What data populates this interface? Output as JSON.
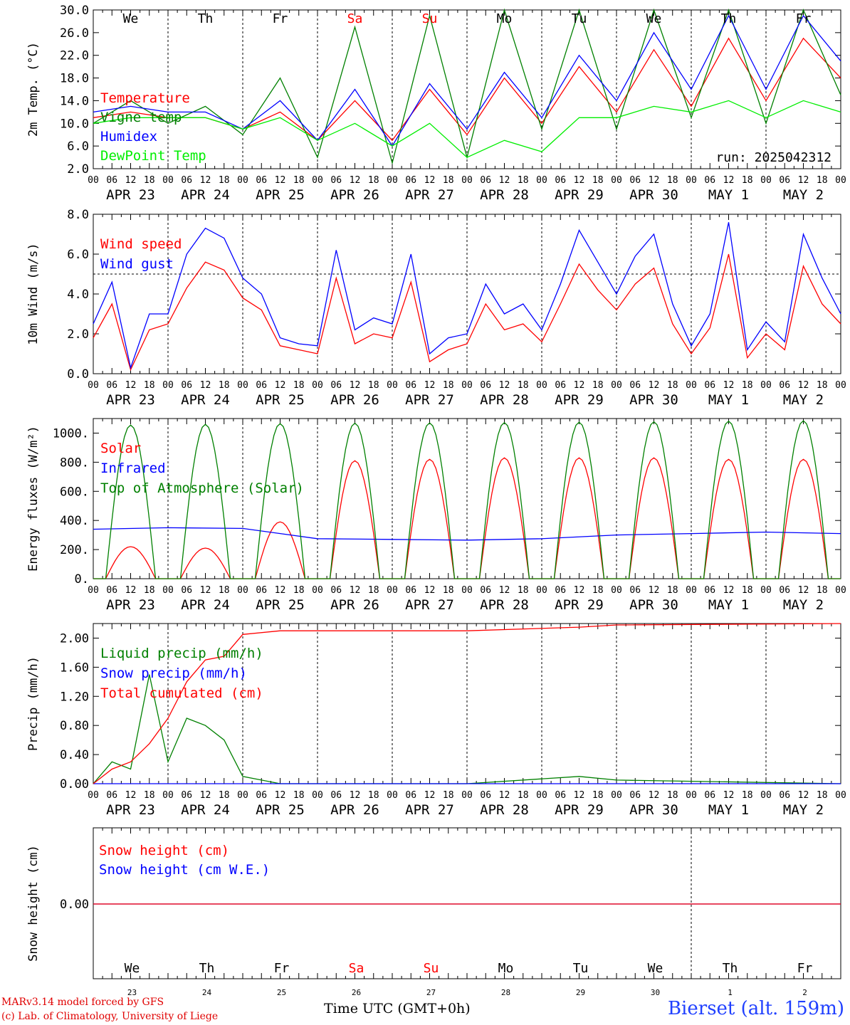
{
  "chart_data": [
    {
      "type": "line",
      "ylabel": "2m Temp. (°C)",
      "ylim": [
        2,
        30
      ],
      "yticks": [
        "2.0",
        "6.0",
        "10.0",
        "14.0",
        "18.0",
        "22.0",
        "26.0",
        "30.0"
      ],
      "run_label": "run: 2025042312",
      "x_hours": [
        0,
        12,
        24,
        36,
        48,
        60,
        72,
        84,
        96,
        108,
        120,
        132,
        144,
        156,
        168,
        180,
        192,
        204,
        216,
        228,
        240
      ],
      "series": [
        {
          "name": "Temperature",
          "color": "#ff0000",
          "values": [
            11,
            12,
            11,
            11,
            9,
            12,
            7,
            14,
            7,
            16,
            8,
            18,
            10,
            20,
            12,
            23,
            13,
            25,
            14,
            25,
            18
          ]
        },
        {
          "name": "Vigne temp",
          "color": "#008000",
          "values": [
            10,
            14,
            10,
            13,
            8,
            18,
            4,
            27,
            3,
            29,
            4,
            30,
            9,
            30,
            9,
            30,
            11,
            30,
            10,
            30,
            15
          ]
        },
        {
          "name": "Humidex",
          "color": "#0000ff",
          "values": [
            12,
            13,
            12,
            12,
            9,
            14,
            7,
            16,
            6,
            17,
            9,
            19,
            11,
            22,
            14,
            26,
            16,
            29,
            16,
            29,
            21
          ]
        },
        {
          "name": "DewPoint Temp",
          "color": "#00ee00",
          "values": [
            10,
            11,
            11,
            11,
            9,
            11,
            7,
            10,
            6,
            10,
            4,
            7,
            5,
            11,
            11,
            13,
            12,
            14,
            11,
            14,
            12
          ]
        }
      ]
    },
    {
      "type": "line",
      "ylabel": "10m Wind (m/s)",
      "ylim": [
        0,
        8
      ],
      "yticks": [
        "0.0",
        "2.0",
        "4.0",
        "6.0",
        "8.0"
      ],
      "reference_line": 5,
      "x_hours": [
        0,
        6,
        12,
        18,
        24,
        30,
        36,
        42,
        48,
        54,
        60,
        66,
        72,
        78,
        84,
        90,
        96,
        102,
        108,
        114,
        120,
        126,
        132,
        138,
        144,
        150,
        156,
        162,
        168,
        174,
        180,
        186,
        192,
        198,
        204,
        210,
        216,
        222,
        228,
        234,
        240
      ],
      "series": [
        {
          "name": "Wind speed",
          "color": "#ff0000",
          "values": [
            1.8,
            3.5,
            0.2,
            2.2,
            2.5,
            4.3,
            5.6,
            5.2,
            3.8,
            3.2,
            1.4,
            1.2,
            1.0,
            4.8,
            1.5,
            2.0,
            1.8,
            4.6,
            0.6,
            1.2,
            1.5,
            3.5,
            2.2,
            2.5,
            1.6,
            3.5,
            5.5,
            4.2,
            3.2,
            4.5,
            5.3,
            2.5,
            1.0,
            2.3,
            6.0,
            0.8,
            2.0,
            1.2,
            5.4,
            3.5,
            2.5
          ]
        },
        {
          "name": "Wind gust",
          "color": "#0000ff",
          "values": [
            2.5,
            4.6,
            0.3,
            3.0,
            3.0,
            6.0,
            7.3,
            6.8,
            4.8,
            4.0,
            1.8,
            1.5,
            1.4,
            6.2,
            2.2,
            2.8,
            2.5,
            6.0,
            1.0,
            1.8,
            2.0,
            4.5,
            3.0,
            3.5,
            2.2,
            4.5,
            7.2,
            5.6,
            4.0,
            5.9,
            7.0,
            3.5,
            1.4,
            3.0,
            7.6,
            1.2,
            2.6,
            1.6,
            7.0,
            4.8,
            3.0
          ]
        }
      ]
    },
    {
      "type": "line",
      "ylabel": "Energy fluxes (W/m²)",
      "ylim": [
        0,
        1100
      ],
      "yticks": [
        "0.",
        "200.",
        "400.",
        "600.",
        "800.",
        "1000."
      ],
      "series": [
        {
          "name": "Solar",
          "color": "#ff0000",
          "peaks": [
            220,
            210,
            390,
            810,
            820,
            830,
            830,
            830,
            820,
            820
          ]
        },
        {
          "name": "Infrared",
          "color": "#0000ff",
          "x_hours": [
            0,
            24,
            48,
            72,
            96,
            120,
            144,
            168,
            192,
            216,
            240
          ],
          "values": [
            340,
            350,
            345,
            275,
            270,
            265,
            275,
            300,
            310,
            320,
            310
          ]
        },
        {
          "name": "Top of Atmosphere (Solar)",
          "color": "#008000",
          "peaks": [
            1055,
            1060,
            1065,
            1068,
            1070,
            1072,
            1075,
            1078,
            1082,
            1085
          ]
        }
      ]
    },
    {
      "type": "line",
      "ylabel": "Precip (mm/h)",
      "ylim": [
        0,
        2.2
      ],
      "yticks": [
        "0.00",
        "0.40",
        "0.80",
        "1.20",
        "1.60",
        "2.00"
      ],
      "x_hours": [
        0,
        6,
        12,
        18,
        24,
        30,
        36,
        42,
        48,
        60,
        72,
        120,
        156,
        168,
        240
      ],
      "series": [
        {
          "name": "Liquid precip (mm/h)",
          "color": "#008000",
          "values": [
            0.0,
            0.3,
            0.2,
            1.5,
            0.3,
            0.9,
            0.8,
            0.6,
            0.1,
            0.0,
            0.0,
            0.0,
            0.1,
            0.05,
            0.0
          ]
        },
        {
          "name": "Snow precip (mm/h)",
          "color": "#0000ff",
          "values": [
            0,
            0,
            0,
            0,
            0,
            0,
            0,
            0,
            0,
            0,
            0,
            0,
            0,
            0,
            0
          ]
        },
        {
          "name": "Total cumulated (cm)",
          "color": "#ff0000",
          "values": [
            0.0,
            0.2,
            0.3,
            0.55,
            0.9,
            1.4,
            1.7,
            1.75,
            2.05,
            2.1,
            2.1,
            2.1,
            2.15,
            2.18,
            2.2
          ]
        }
      ]
    },
    {
      "type": "line",
      "ylabel": "Snow height (cm)",
      "yticks": [
        "0.00"
      ],
      "series": [
        {
          "name": "Snow height (cm)",
          "color": "#ff0000",
          "values": [
            0,
            0
          ]
        },
        {
          "name": "Snow height (cm W.E.)",
          "color": "#0000ff",
          "values": [
            0,
            0
          ]
        }
      ]
    }
  ],
  "x_axis": {
    "hour_ticks": [
      "00",
      "06",
      "12",
      "18"
    ],
    "last_tick": "00",
    "dates": [
      "APR 23",
      "APR 24",
      "APR 25",
      "APR 26",
      "APR 27",
      "APR 28",
      "APR 29",
      "APR 30",
      "MAY  1",
      "MAY  2"
    ],
    "day_names": [
      "We",
      "Th",
      "Fr",
      "Sa",
      "Su",
      "Mo",
      "Tu",
      "We",
      "Th",
      "Fr"
    ],
    "day_colors": [
      "#000000",
      "#000000",
      "#000000",
      "#ff0000",
      "#ff0000",
      "#000000",
      "#000000",
      "#000000",
      "#000000",
      "#000000"
    ],
    "day_numbers": [
      "23",
      "24",
      "25",
      "26",
      "27",
      "28",
      "29",
      "30",
      "1",
      "2"
    ],
    "label": "Time UTC (GMT+0h)"
  },
  "credits": {
    "line1": "MARv3.14 model forced by GFS",
    "line2": "(c) Lab. of Climatology, University of Liege"
  },
  "station": "Bierset (alt. 159m)"
}
